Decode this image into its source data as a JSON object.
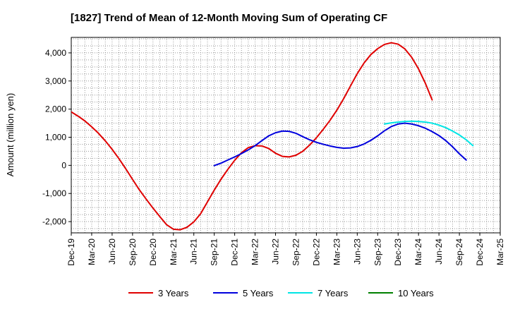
{
  "chart_data": {
    "type": "line",
    "title": "[1827]  Trend of Mean of 12-Month Moving Sum of Operating CF",
    "xlabel": "",
    "ylabel": "Amount (million yen)",
    "ylim": [
      -2400,
      4550
    ],
    "yticks": [
      -2000,
      -1000,
      0,
      1000,
      2000,
      3000,
      4000
    ],
    "ytick_labels": [
      "-2,000",
      "-1,000",
      "0",
      "1,000",
      "2,000",
      "3,000",
      "4,000"
    ],
    "xtick_labels": [
      "Dec-19",
      "Mar-20",
      "Jun-20",
      "Sep-20",
      "Dec-20",
      "Mar-21",
      "Jun-21",
      "Sep-21",
      "Dec-21",
      "Mar-22",
      "Jun-22",
      "Sep-22",
      "Dec-22",
      "Mar-23",
      "Jun-23",
      "Sep-23",
      "Dec-23",
      "Mar-24",
      "Jun-24",
      "Sep-24",
      "Dec-24",
      "Mar-25"
    ],
    "grid": true,
    "legend_position": "bottom",
    "series": [
      {
        "name": "3 Years",
        "color": "#e00000",
        "start_index": 0,
        "values": [
          1900,
          1750,
          1580,
          1370,
          1140,
          870,
          570,
          240,
          -120,
          -500,
          -870,
          -1200,
          -1520,
          -1820,
          -2110,
          -2270,
          -2290,
          -2200,
          -2010,
          -1720,
          -1300,
          -880,
          -490,
          -140,
          180,
          450,
          630,
          700,
          690,
          600,
          430,
          320,
          300,
          360,
          500,
          720,
          980,
          1280,
          1600,
          1960,
          2370,
          2820,
          3260,
          3640,
          3940,
          4150,
          4300,
          4360,
          4310,
          4140,
          3840,
          3430,
          2920,
          2330
        ]
      },
      {
        "name": "5 Years",
        "color": "#0000dd",
        "start_index": 21,
        "values": [
          -10,
          80,
          190,
          300,
          420,
          550,
          700,
          880,
          1050,
          1160,
          1220,
          1210,
          1140,
          1020,
          910,
          820,
          750,
          690,
          640,
          610,
          620,
          670,
          760,
          890,
          1050,
          1230,
          1380,
          1470,
          1500,
          1470,
          1410,
          1320,
          1200,
          1060,
          880,
          660,
          410,
          190
        ]
      },
      {
        "name": "7 Years",
        "color": "#00e5e5",
        "start_index": 46,
        "values": [
          1470,
          1510,
          1540,
          1560,
          1570,
          1560,
          1540,
          1500,
          1430,
          1340,
          1220,
          1080,
          910,
          700
        ]
      },
      {
        "name": "10 Years",
        "color": "#008000",
        "start_index": 0,
        "values": []
      }
    ]
  }
}
